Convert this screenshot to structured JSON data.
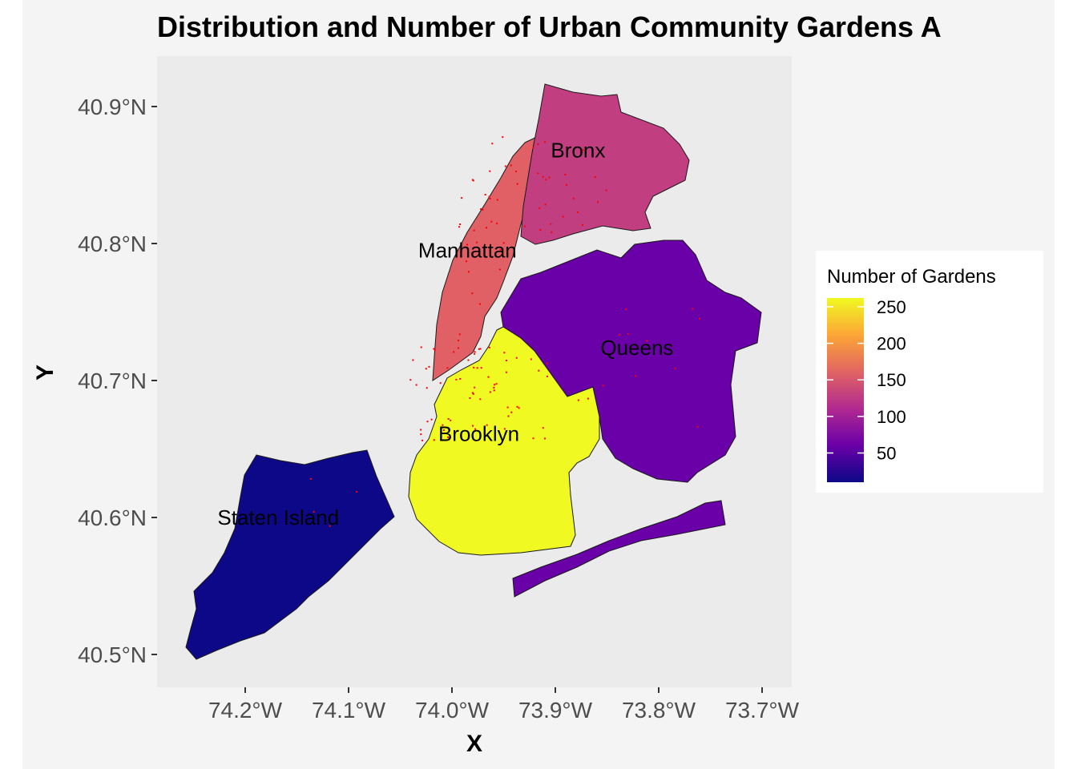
{
  "title": "Distribution and Number of Urban Community Gardens A",
  "axes": {
    "x_label": "X",
    "y_label": "Y",
    "x_ticks": [
      "74.2°W",
      "74.1°W",
      "74.0°W",
      "73.9°W",
      "73.8°W",
      "73.7°W"
    ],
    "y_ticks": [
      "40.9°N",
      "40.8°N",
      "40.7°N",
      "40.6°N",
      "40.5°N"
    ],
    "x_range": [
      -74.27,
      -73.67
    ],
    "y_range": [
      40.49,
      40.93
    ]
  },
  "legend": {
    "title": "Number of Gardens",
    "ticks": [
      "250",
      "200",
      "150",
      "100",
      "50"
    ],
    "tick_values": [
      250,
      200,
      150,
      100,
      50
    ],
    "range": [
      10,
      262
    ],
    "placement": "right",
    "colorscale": [
      "#0d0887",
      "#6a00a8",
      "#b12a90",
      "#e16462",
      "#fca636",
      "#f0f921"
    ]
  },
  "chart_data": {
    "type": "choropleth",
    "value_label": "Number of Gardens",
    "regions": [
      {
        "name": "Manhattan",
        "gardens": 165,
        "color": "#e06066"
      },
      {
        "name": "Bronx",
        "gardens": 120,
        "color": "#c13f80"
      },
      {
        "name": "Brooklyn",
        "gardens": 262,
        "color": "#f0f921"
      },
      {
        "name": "Queens",
        "gardens": 58,
        "color": "#6a00a8"
      },
      {
        "name": "Staten Island",
        "gardens": 12,
        "color": "#0d0887"
      }
    ],
    "garden_point_color": "#ff0000"
  },
  "colors": {
    "panel_background": "#ebebeb",
    "plot_background": "#f4f4f4",
    "outline": "#1a1a1a"
  }
}
